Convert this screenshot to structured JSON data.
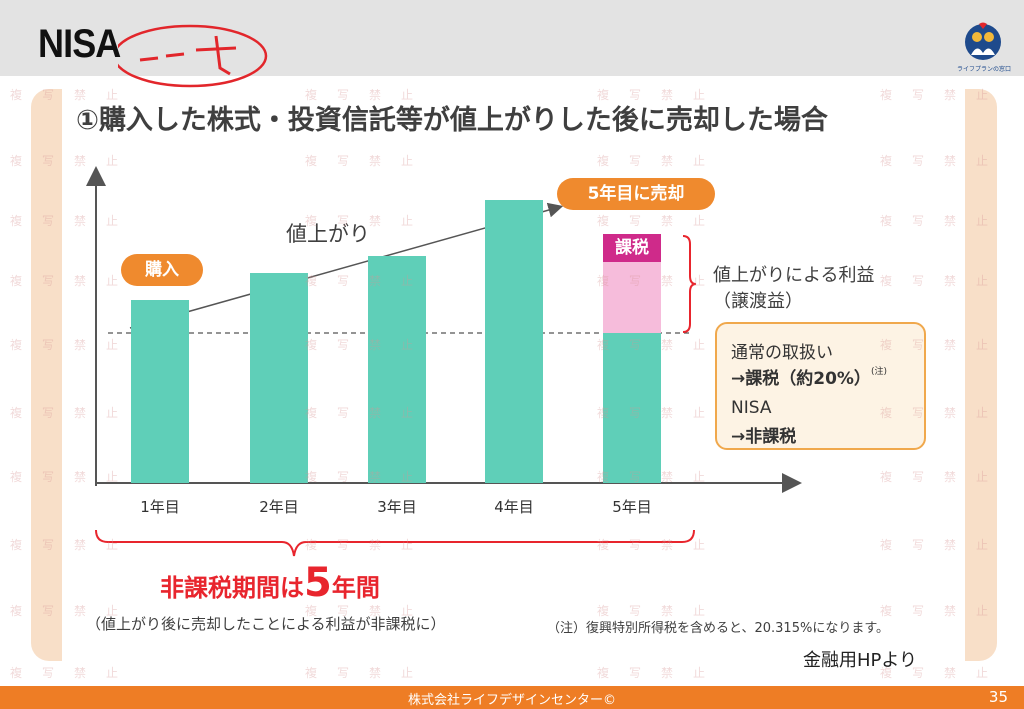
{
  "header": {
    "title": "NISA",
    "handwritten_note": "ニーサ"
  },
  "logo": {
    "text": "ライフプランの窓口"
  },
  "slide": {
    "title": "①購入した株式・投資信託等が値上がりした後に売却した場合",
    "rise_label": "値上がり",
    "buy_label": "購入",
    "sell_label": "5年目に売却",
    "tax_label": "課税",
    "profit_label_1": "値上がりによる利益",
    "profit_label_2": "（譲渡益）",
    "box": {
      "line1": "通常の取扱い",
      "line2": "→課税（約20%）",
      "line2_note": "(注)",
      "line3": "NISA",
      "line4": "→非課税"
    },
    "period_prefix": "非課税期間は",
    "period_number": "5",
    "period_suffix": "年間",
    "note_left": "（値上がり後に売却したことによる利益が非課税に）",
    "note_right": "（注）復興特別所得税を含めると、20.315%になります。",
    "source": "金融用HPより"
  },
  "chart_data": {
    "type": "bar",
    "categories": [
      "1年目",
      "2年目",
      "3年目",
      "4年目",
      "5年目"
    ],
    "values": [
      100,
      115,
      124,
      155,
      155
    ],
    "taxed_portion_year5": 55,
    "baseline": 100,
    "ylim": [
      0,
      185
    ],
    "title": "",
    "xlabel": "",
    "ylabel": "",
    "colors": {
      "bar": "#5fcfb8",
      "taxed": "#f6bcdb",
      "tax_badge": "#cf2a8a",
      "accent": "#ef8a2e"
    }
  },
  "footer": {
    "company": "株式会社ライフデザインセンター©",
    "page": "35"
  },
  "watermark": {
    "chars": [
      "複",
      "写",
      "禁",
      "止"
    ]
  }
}
